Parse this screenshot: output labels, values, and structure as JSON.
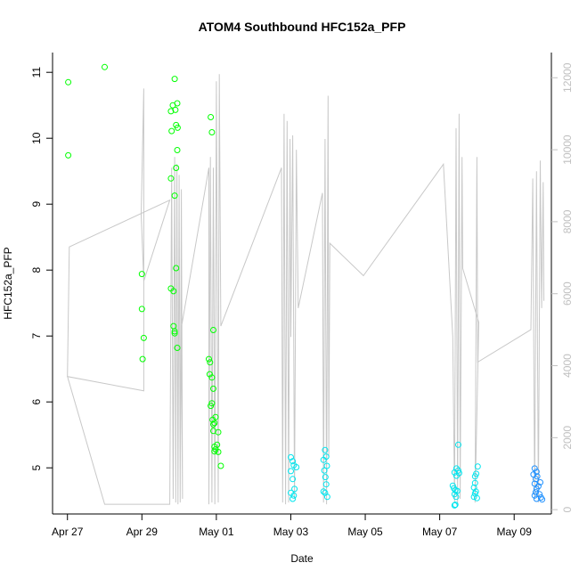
{
  "chart_data": {
    "type": "scatter",
    "title": "ATOM4 Southbound HFC152a_PFP",
    "xlabel": "Date",
    "ylabel": "HFC152a_PFP",
    "x_unit": "days since Apr 27 (noon origin)",
    "xlim": [
      -0.4,
      13.0
    ],
    "ylim": [
      4.3,
      11.3
    ],
    "y2lim": [
      -120,
      12700
    ],
    "x_ticks": [
      {
        "value": 0,
        "label": "Apr 27"
      },
      {
        "value": 2,
        "label": "Apr 29"
      },
      {
        "value": 4,
        "label": "May 01"
      },
      {
        "value": 6,
        "label": "May 03"
      },
      {
        "value": 8,
        "label": "May 05"
      },
      {
        "value": 10,
        "label": "May 07"
      },
      {
        "value": 12,
        "label": "May 09"
      }
    ],
    "y_ticks": [
      {
        "value": 5,
        "label": "5"
      },
      {
        "value": 6,
        "label": "6"
      },
      {
        "value": 7,
        "label": "7"
      },
      {
        "value": 8,
        "label": "8"
      },
      {
        "value": 9,
        "label": "9"
      },
      {
        "value": 10,
        "label": "10"
      },
      {
        "value": 11,
        "label": "11"
      }
    ],
    "y2_ticks": [
      {
        "value": 0,
        "label": "0"
      },
      {
        "value": 2000,
        "label": "2000"
      },
      {
        "value": 4000,
        "label": "4000"
      },
      {
        "value": 6000,
        "label": "6000"
      },
      {
        "value": 8000,
        "label": "8000"
      },
      {
        "value": 10000,
        "label": "10000"
      },
      {
        "value": 12000,
        "label": "12000"
      }
    ],
    "colors": {
      "green": "#00ff00",
      "cyan": "#00e5ee",
      "blue": "#1e90ff",
      "altitude": "#c8c8c8",
      "axis": "#000000",
      "secondary_axis": "#c0c0c0"
    },
    "series": [
      {
        "name": "HFC152a_PFP (green)",
        "color": "#00ff00",
        "points": [
          [
            0.02,
            10.85
          ],
          [
            0.02,
            9.74
          ],
          [
            1.0,
            11.08
          ],
          [
            2.0,
            7.94
          ],
          [
            2.0,
            7.41
          ],
          [
            2.05,
            6.97
          ],
          [
            2.02,
            6.65
          ],
          [
            2.78,
            10.41
          ],
          [
            2.83,
            10.5
          ],
          [
            2.88,
            10.9
          ],
          [
            2.9,
            10.43
          ],
          [
            2.95,
            10.53
          ],
          [
            2.8,
            10.11
          ],
          [
            2.92,
            10.2
          ],
          [
            2.96,
            10.16
          ],
          [
            2.95,
            9.82
          ],
          [
            2.92,
            9.55
          ],
          [
            2.78,
            9.39
          ],
          [
            2.88,
            9.13
          ],
          [
            2.92,
            8.03
          ],
          [
            2.78,
            7.72
          ],
          [
            2.85,
            7.68
          ],
          [
            2.85,
            7.15
          ],
          [
            2.88,
            7.07
          ],
          [
            2.88,
            7.04
          ],
          [
            2.95,
            6.82
          ],
          [
            4.05,
            5.54
          ],
          [
            4.02,
            5.35
          ],
          [
            4.05,
            5.24
          ],
          [
            4.12,
            5.03
          ],
          [
            3.85,
            10.32
          ],
          [
            3.88,
            10.09
          ],
          [
            3.92,
            7.09
          ],
          [
            3.8,
            6.65
          ],
          [
            3.83,
            6.6
          ],
          [
            3.82,
            6.42
          ],
          [
            3.88,
            6.37
          ],
          [
            3.92,
            6.2
          ],
          [
            3.88,
            5.98
          ],
          [
            3.85,
            5.94
          ],
          [
            3.98,
            5.77
          ],
          [
            3.9,
            5.73
          ],
          [
            3.95,
            5.68
          ],
          [
            3.92,
            5.66
          ],
          [
            3.92,
            5.56
          ],
          [
            3.95,
            5.32
          ],
          [
            3.98,
            5.28
          ],
          [
            3.95,
            5.25
          ]
        ]
      },
      {
        "name": "HFC152a_PFP (cyan)",
        "color": "#00e5ee",
        "points": [
          [
            6.0,
            5.16
          ],
          [
            6.05,
            5.1
          ],
          [
            6.08,
            5.04
          ],
          [
            6.15,
            5.01
          ],
          [
            6.0,
            4.95
          ],
          [
            6.05,
            4.83
          ],
          [
            6.1,
            4.68
          ],
          [
            6.0,
            4.62
          ],
          [
            6.08,
            4.58
          ],
          [
            6.05,
            4.53
          ],
          [
            6.92,
            5.27
          ],
          [
            6.95,
            5.17
          ],
          [
            6.88,
            5.12
          ],
          [
            6.97,
            5.03
          ],
          [
            6.9,
            4.96
          ],
          [
            6.93,
            4.86
          ],
          [
            6.95,
            4.75
          ],
          [
            6.88,
            4.64
          ],
          [
            6.92,
            4.62
          ],
          [
            6.98,
            4.56
          ],
          [
            10.5,
            5.35
          ],
          [
            10.45,
            4.99
          ],
          [
            10.5,
            4.96
          ],
          [
            10.4,
            4.93
          ],
          [
            10.52,
            4.92
          ],
          [
            10.45,
            4.88
          ],
          [
            10.35,
            4.73
          ],
          [
            10.38,
            4.69
          ],
          [
            10.42,
            4.66
          ],
          [
            10.47,
            4.65
          ],
          [
            10.4,
            4.6
          ],
          [
            10.44,
            4.56
          ],
          [
            10.42,
            4.44
          ],
          [
            10.4,
            4.43
          ],
          [
            11.02,
            5.02
          ],
          [
            10.98,
            4.91
          ],
          [
            10.95,
            4.87
          ],
          [
            10.95,
            4.77
          ],
          [
            10.92,
            4.7
          ],
          [
            10.97,
            4.64
          ],
          [
            10.95,
            4.61
          ],
          [
            10.92,
            4.56
          ],
          [
            11.0,
            4.54
          ]
        ]
      },
      {
        "name": "HFC152a_PFP (blue)",
        "color": "#1e90ff",
        "points": [
          [
            12.55,
            4.99
          ],
          [
            12.6,
            4.94
          ],
          [
            12.52,
            4.9
          ],
          [
            12.62,
            4.87
          ],
          [
            12.58,
            4.83
          ],
          [
            12.7,
            4.78
          ],
          [
            12.55,
            4.76
          ],
          [
            12.65,
            4.72
          ],
          [
            12.6,
            4.68
          ],
          [
            12.58,
            4.63
          ],
          [
            12.68,
            4.6
          ],
          [
            12.55,
            4.58
          ],
          [
            12.72,
            4.55
          ],
          [
            12.6,
            4.53
          ],
          [
            12.75,
            4.52
          ]
        ]
      }
    ],
    "altitude_series": {
      "name": "Altitude (secondary axis)",
      "color": "#c8c8c8",
      "points": [
        [
          0.0,
          3700
        ],
        [
          0.05,
          7300
        ],
        [
          2.75,
          8600
        ],
        [
          2.05,
          6350
        ],
        [
          1.98,
          8200
        ],
        [
          2.05,
          11700
        ],
        [
          2.05,
          3300
        ],
        [
          0.0,
          3700
        ],
        [
          1.0,
          150
        ],
        [
          2.75,
          150
        ],
        [
          2.8,
          9500
        ],
        [
          2.84,
          300
        ],
        [
          2.88,
          9800
        ],
        [
          2.91,
          200
        ],
        [
          2.94,
          9600
        ],
        [
          2.97,
          150
        ],
        [
          3.0,
          9300
        ],
        [
          3.03,
          200
        ],
        [
          3.06,
          8900
        ],
        [
          3.09,
          300
        ],
        [
          3.05,
          5000
        ],
        [
          3.8,
          9500
        ],
        [
          3.8,
          150
        ],
        [
          3.84,
          9800
        ],
        [
          3.88,
          200
        ],
        [
          3.92,
          9500
        ],
        [
          3.96,
          150
        ],
        [
          4.0,
          11900
        ],
        [
          4.05,
          200
        ],
        [
          4.08,
          12100
        ],
        [
          4.12,
          5100
        ],
        [
          5.75,
          9500
        ],
        [
          5.78,
          200
        ],
        [
          5.82,
          11000
        ],
        [
          5.86,
          150
        ],
        [
          5.9,
          10800
        ],
        [
          5.94,
          200
        ],
        [
          5.98,
          10300
        ],
        [
          6.0,
          4800
        ],
        [
          6.05,
          10400
        ],
        [
          6.1,
          300
        ],
        [
          6.15,
          10000
        ],
        [
          6.2,
          5600
        ],
        [
          6.85,
          8800
        ],
        [
          6.88,
          200
        ],
        [
          6.92,
          10300
        ],
        [
          6.96,
          150
        ],
        [
          7.0,
          11500
        ],
        [
          7.02,
          1500
        ],
        [
          7.05,
          7400
        ],
        [
          7.95,
          6500
        ],
        [
          10.1,
          9600
        ],
        [
          10.35,
          4800
        ],
        [
          10.4,
          200
        ],
        [
          10.44,
          10600
        ],
        [
          10.48,
          150
        ],
        [
          10.52,
          11000
        ],
        [
          10.55,
          300
        ],
        [
          10.6,
          9800
        ],
        [
          10.62,
          6700
        ],
        [
          11.05,
          5200
        ],
        [
          10.95,
          200
        ],
        [
          11.0,
          9800
        ],
        [
          11.02,
          4100
        ],
        [
          12.45,
          5000
        ],
        [
          12.5,
          9200
        ],
        [
          12.55,
          300
        ],
        [
          12.6,
          9400
        ],
        [
          12.65,
          200
        ],
        [
          12.7,
          9700
        ],
        [
          12.74,
          5600
        ],
        [
          12.78,
          9100
        ],
        [
          12.8,
          5800
        ]
      ]
    }
  }
}
